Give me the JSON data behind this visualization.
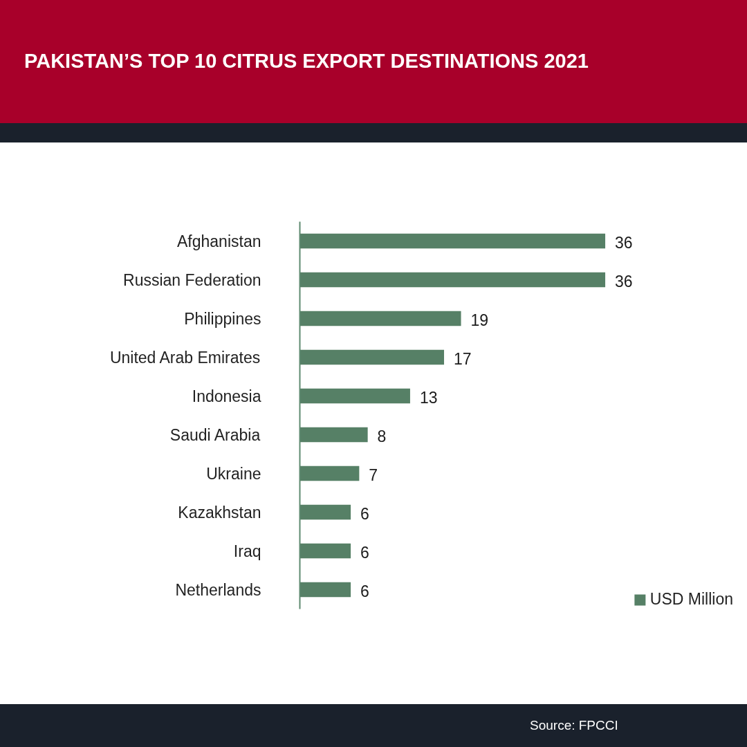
{
  "chart_data": {
    "type": "bar",
    "orientation": "horizontal",
    "title": "PAKISTAN’S TOP 10 CITRUS EXPORT DESTINATIONS 2021",
    "categories": [
      "Afghanistan",
      "Russian Federation",
      "Philippines",
      "United Arab Emirates",
      "Indonesia",
      "Saudi Arabia",
      "Ukraine",
      "Kazakhstan",
      "Iraq",
      "Netherlands"
    ],
    "series": [
      {
        "name": "USD Million",
        "color": "#568066",
        "values": [
          36,
          36,
          19,
          17,
          13,
          8,
          7,
          6,
          6,
          6
        ]
      }
    ],
    "data_labels": true,
    "legend": "bottom right",
    "annotations": [
      "Source: FPCCI"
    ]
  }
}
